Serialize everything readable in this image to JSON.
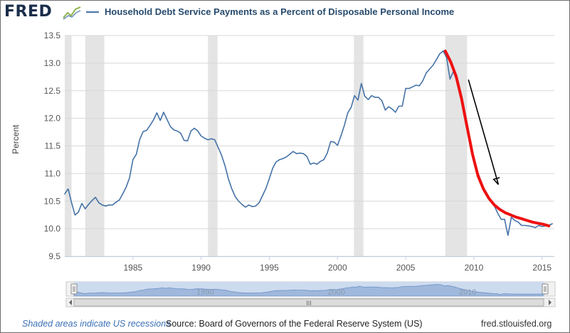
{
  "header": {
    "logo_text": "FRED",
    "logo_icon": "trend-line-icon"
  },
  "chart_data": {
    "type": "line",
    "title": "Household Debt Service Payments as a Percent of Disposable Personal Income",
    "ylabel": "Percent",
    "xlabel": "",
    "ylim": [
      9.5,
      13.5
    ],
    "xlim": [
      1980.0,
      2015.9
    ],
    "y_ticks": [
      "9.5",
      "10.0",
      "10.5",
      "11.0",
      "11.5",
      "12.0",
      "12.5",
      "13.0",
      "13.5"
    ],
    "x_ticks": [
      "1985",
      "1990",
      "1995",
      "2000",
      "2005",
      "2010",
      "2015"
    ],
    "grid": true,
    "recessions": [
      [
        1980.0,
        1980.5
      ],
      [
        1981.5,
        1982.9
      ],
      [
        1990.5,
        1991.2
      ],
      [
        2001.2,
        2001.9
      ],
      [
        2007.9,
        2009.5
      ]
    ],
    "series": [
      {
        "name": "Household Debt Service Payments as a Percent of Disposable Personal Income",
        "color": "#4572a7",
        "x": [
          1980.0,
          1980.25,
          1980.5,
          1980.75,
          1981.0,
          1981.25,
          1981.5,
          1981.75,
          1982.0,
          1982.25,
          1982.5,
          1982.75,
          1983.0,
          1983.25,
          1983.5,
          1983.75,
          1984.0,
          1984.25,
          1984.5,
          1984.75,
          1985.0,
          1985.25,
          1985.5,
          1985.75,
          1986.0,
          1986.25,
          1986.5,
          1986.75,
          1987.0,
          1987.25,
          1987.5,
          1987.75,
          1988.0,
          1988.25,
          1988.5,
          1988.75,
          1989.0,
          1989.25,
          1989.5,
          1989.75,
          1990.0,
          1990.25,
          1990.5,
          1990.75,
          1991.0,
          1991.25,
          1991.5,
          1991.75,
          1992.0,
          1992.25,
          1992.5,
          1992.75,
          1993.0,
          1993.25,
          1993.5,
          1993.75,
          1994.0,
          1994.25,
          1994.5,
          1994.75,
          1995.0,
          1995.25,
          1995.5,
          1995.75,
          1996.0,
          1996.25,
          1996.5,
          1996.75,
          1997.0,
          1997.25,
          1997.5,
          1997.75,
          1998.0,
          1998.25,
          1998.5,
          1998.75,
          1999.0,
          1999.25,
          1999.5,
          1999.75,
          2000.0,
          2000.25,
          2000.5,
          2000.75,
          2001.0,
          2001.25,
          2001.5,
          2001.75,
          2002.0,
          2002.25,
          2002.5,
          2002.75,
          2003.0,
          2003.25,
          2003.5,
          2003.75,
          2004.0,
          2004.25,
          2004.5,
          2004.75,
          2005.0,
          2005.25,
          2005.5,
          2005.75,
          2006.0,
          2006.25,
          2006.5,
          2006.75,
          2007.0,
          2007.25,
          2007.5,
          2007.75,
          2008.0,
          2008.25,
          2008.5,
          2008.75,
          2009.0,
          2009.25,
          2009.5,
          2009.75,
          2010.0,
          2010.25,
          2010.5,
          2010.75,
          2011.0,
          2011.25,
          2011.5,
          2011.75,
          2012.0,
          2012.25,
          2012.5,
          2012.75,
          2013.0,
          2013.25,
          2013.5,
          2013.75,
          2014.0,
          2014.25,
          2014.5,
          2014.75,
          2015.0,
          2015.25,
          2015.5,
          2015.75
        ],
        "values": [
          10.63,
          10.72,
          10.47,
          10.25,
          10.3,
          10.46,
          10.36,
          10.44,
          10.51,
          10.57,
          10.47,
          10.43,
          10.41,
          10.43,
          10.43,
          10.48,
          10.52,
          10.63,
          10.75,
          10.92,
          11.25,
          11.35,
          11.62,
          11.76,
          11.78,
          11.87,
          11.97,
          12.1,
          11.96,
          12.11,
          11.98,
          11.85,
          11.79,
          11.77,
          11.73,
          11.6,
          11.59,
          11.77,
          11.82,
          11.77,
          11.68,
          11.64,
          11.61,
          11.63,
          11.61,
          11.47,
          11.33,
          11.14,
          10.9,
          10.72,
          10.58,
          10.5,
          10.44,
          10.39,
          10.43,
          10.4,
          10.41,
          10.47,
          10.6,
          10.73,
          10.91,
          11.1,
          11.21,
          11.25,
          11.27,
          11.3,
          11.35,
          11.4,
          11.36,
          11.37,
          11.36,
          11.31,
          11.17,
          11.19,
          11.17,
          11.22,
          11.25,
          11.37,
          11.58,
          11.57,
          11.51,
          11.68,
          11.87,
          12.1,
          12.2,
          12.41,
          12.33,
          12.63,
          12.4,
          12.34,
          12.41,
          12.38,
          12.38,
          12.32,
          12.15,
          12.21,
          12.17,
          12.11,
          12.22,
          12.22,
          12.54,
          12.54,
          12.57,
          12.6,
          12.59,
          12.68,
          12.82,
          12.89,
          12.96,
          13.06,
          13.17,
          13.22,
          13.1,
          12.71,
          12.85,
          12.67,
          12.44,
          12.08,
          11.79,
          11.52,
          11.28,
          11.05,
          10.88,
          10.73,
          10.62,
          10.52,
          10.41,
          10.28,
          10.17,
          10.17,
          9.88,
          10.21,
          10.15,
          10.12,
          10.06,
          10.06,
          10.05,
          10.04,
          10.02,
          10.06,
          10.04,
          10.05,
          10.06,
          10.09
        ]
      },
      {
        "name": "",
        "color": "#ee1111",
        "x": [
          2007.9,
          2008.3,
          2008.7,
          2009.1,
          2009.5,
          2009.9,
          2010.3,
          2010.7,
          2011.1,
          2011.5,
          2011.9,
          2012.3,
          2012.7,
          2013.1,
          2013.5,
          2013.9,
          2014.3,
          2014.7,
          2015.1,
          2015.5
        ],
        "values": [
          13.22,
          13.02,
          12.76,
          12.35,
          11.85,
          11.35,
          10.96,
          10.72,
          10.55,
          10.43,
          10.35,
          10.29,
          10.25,
          10.21,
          10.18,
          10.15,
          10.12,
          10.1,
          10.08,
          10.05
        ]
      }
    ],
    "annotation_arrow": {
      "from": [
        2009.6,
        12.7
      ],
      "to": [
        2011.8,
        10.8
      ],
      "color": "#000000"
    }
  },
  "navigator": {
    "labels": [
      "1990",
      "2000",
      "2010"
    ],
    "scroll_grip": "III"
  },
  "footer": {
    "recession_note": "Shaded areas indicate US recessions",
    "source": "Source: Board of Governors of the Federal Reserve System (US)",
    "site": "fred.stlouisfed.org"
  }
}
